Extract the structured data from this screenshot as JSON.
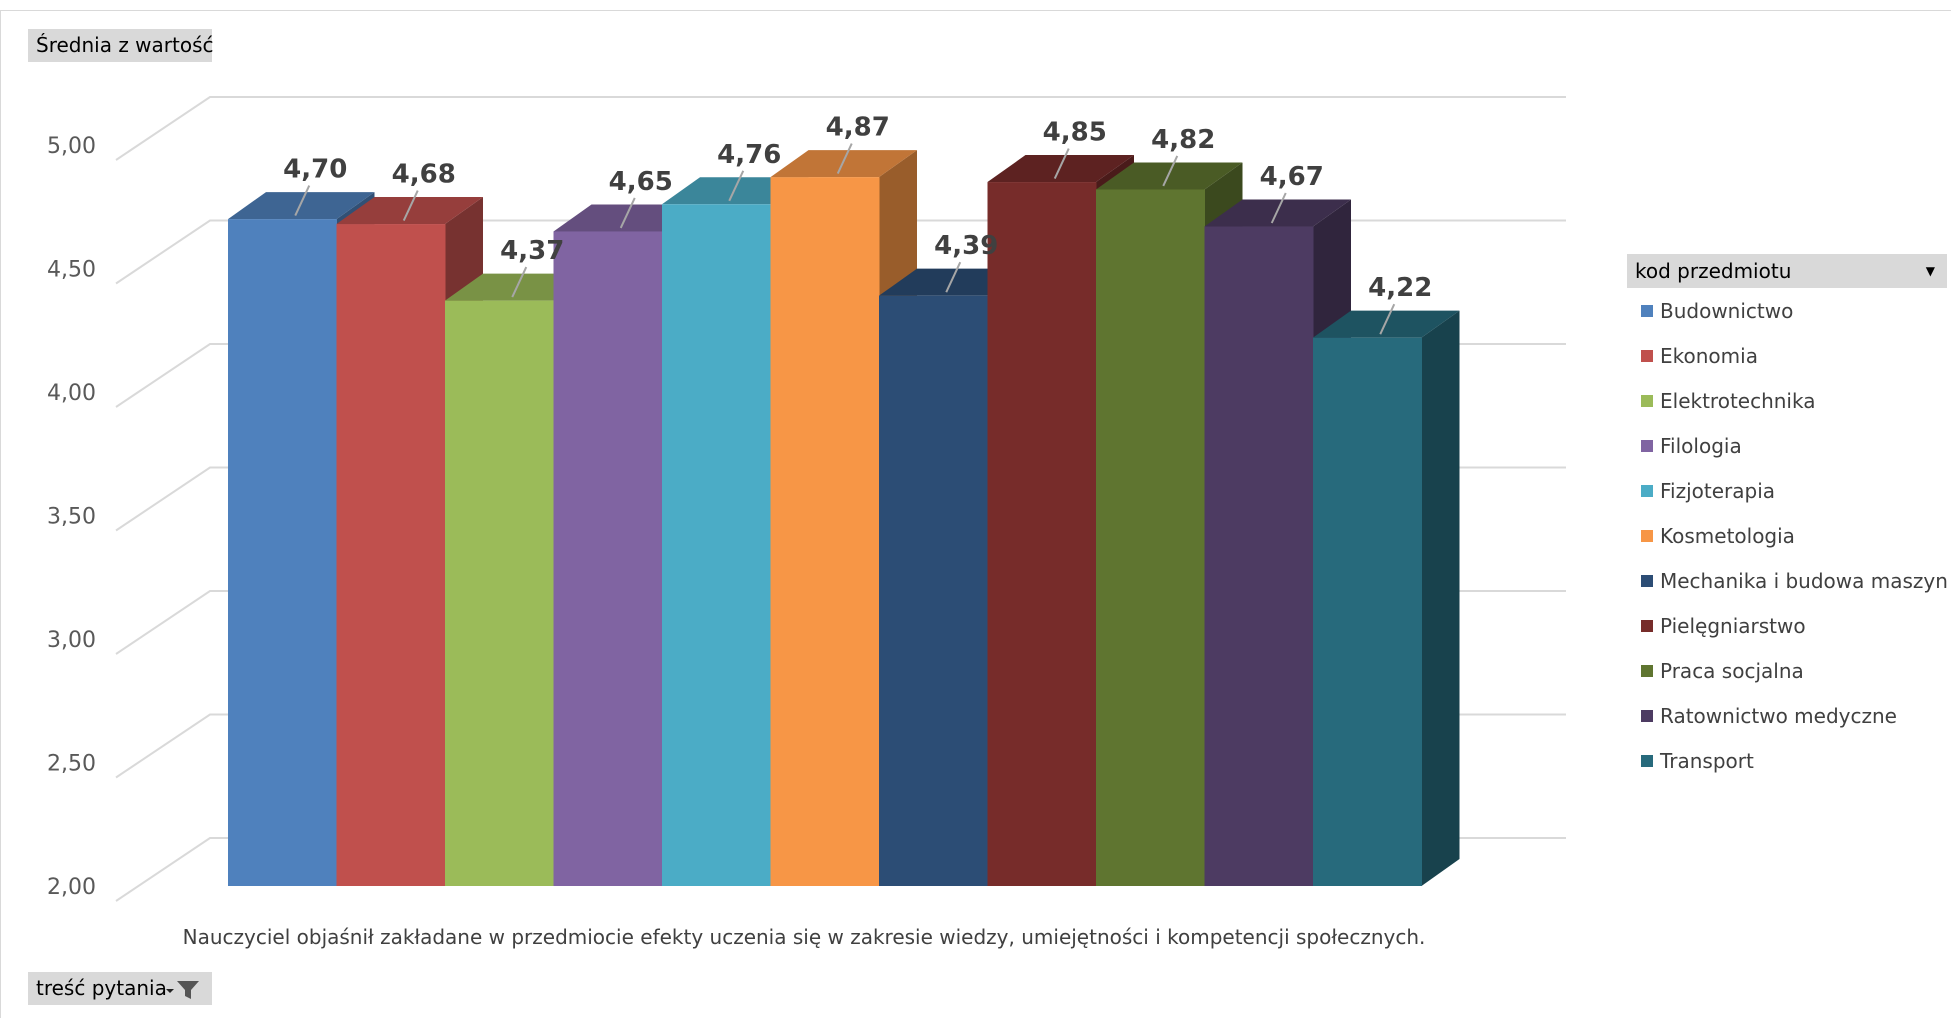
{
  "pivot": {
    "value_field": "Średnia z wartość",
    "row_field": "treść pytania",
    "legend_field": "kod przedmiotu"
  },
  "colors": {
    "Budownictwo": "#4f81bd",
    "Ekonomia": "#c0504d",
    "Elektrotechnika": "#9bbb59",
    "Filologia": "#8064a2",
    "Fizjoterapia": "#4bacc6",
    "Kosmetologia": "#f79646",
    "Mechanika i budowa maszyn": "#2c4d75",
    "Pielęgniarstwo": "#772c2a",
    "Praca socjalna": "#5f7530",
    "Ratownictwo medyczne": "#4d3b62",
    "Transport": "#276a7c"
  },
  "chart_data": {
    "type": "bar",
    "title": "",
    "xlabel": "",
    "ylabel": "",
    "categories": [
      "Nauczyciel objaśnił zakładane w przedmiocie efekty uczenia się w zakresie wiedzy, umiejętności i kompetencji społecznych."
    ],
    "series": [
      {
        "name": "Budownictwo",
        "values": [
          4.7
        ],
        "label": "4,70"
      },
      {
        "name": "Ekonomia",
        "values": [
          4.68
        ],
        "label": "4,68"
      },
      {
        "name": "Elektrotechnika",
        "values": [
          4.37
        ],
        "label": "4,37"
      },
      {
        "name": "Filologia",
        "values": [
          4.65
        ],
        "label": "4,65"
      },
      {
        "name": "Fizjoterapia",
        "values": [
          4.76
        ],
        "label": "4,76"
      },
      {
        "name": "Kosmetologia",
        "values": [
          4.87
        ],
        "label": "4,87"
      },
      {
        "name": "Mechanika i budowa maszyn",
        "values": [
          4.39
        ],
        "label": "4,39"
      },
      {
        "name": "Pielęgniarstwo",
        "values": [
          4.85
        ],
        "label": "4,85"
      },
      {
        "name": "Praca socjalna",
        "values": [
          4.82
        ],
        "label": "4,82"
      },
      {
        "name": "Ratownictwo medyczne",
        "values": [
          4.67
        ],
        "label": "4,67"
      },
      {
        "name": "Transport",
        "values": [
          4.22
        ],
        "label": "4,22"
      }
    ],
    "ylim": [
      2.0,
      5.0
    ],
    "yticks": [
      {
        "value": 2.0,
        "label": "2,00"
      },
      {
        "value": 2.5,
        "label": "2,50"
      },
      {
        "value": 3.0,
        "label": "3,00"
      },
      {
        "value": 3.5,
        "label": "3,50"
      },
      {
        "value": 4.0,
        "label": "4,00"
      },
      {
        "value": 4.5,
        "label": "4,50"
      },
      {
        "value": 5.0,
        "label": "5,00"
      }
    ],
    "grid": true,
    "style": "3d-clustered-column",
    "legend_position": "right"
  }
}
